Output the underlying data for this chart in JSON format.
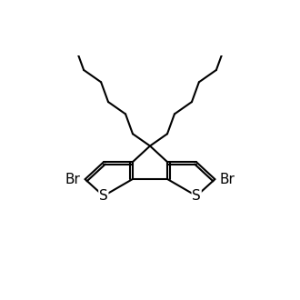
{
  "bg_color": "#ffffff",
  "line_color": "#000000",
  "line_width": 1.5,
  "font_size": 11,
  "figsize": [
    3.3,
    3.3
  ],
  "dpi": 100,
  "labels": {
    "Br_left": "Br",
    "Br_right": "Br",
    "S_left": "S",
    "S_right": "S"
  },
  "xlim": [
    -5.5,
    5.5
  ],
  "ylim": [
    -2.8,
    4.2
  ]
}
